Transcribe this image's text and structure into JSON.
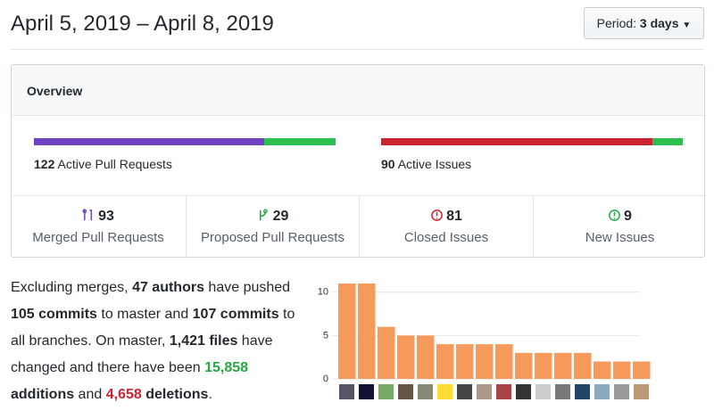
{
  "header": {
    "title": "April 5, 2019 – April 8, 2019",
    "period_label": "Period:",
    "period_value": "3 days"
  },
  "overview": {
    "title": "Overview",
    "pull_requests": {
      "count": 122,
      "label": "Active Pull Requests"
    },
    "issues": {
      "count": 90,
      "label": "Active Issues"
    },
    "stats": [
      {
        "value": 93,
        "label": "Merged Pull Requests",
        "color": "#6f42c1"
      },
      {
        "value": 29,
        "label": "Proposed Pull Requests",
        "color": "#28a745"
      },
      {
        "value": 81,
        "label": "Closed Issues",
        "color": "#cb2431"
      },
      {
        "value": 9,
        "label": "New Issues",
        "color": "#28a745"
      }
    ]
  },
  "summary": [
    {
      "text": "Excluding merges, "
    },
    {
      "text": "47 authors",
      "bold": true
    },
    {
      "text": " have pushed "
    },
    {
      "text": "105 commits",
      "bold": true
    },
    {
      "text": " to master and "
    },
    {
      "text": "107 commits",
      "bold": true
    },
    {
      "text": " to all branches. On master, "
    },
    {
      "text": "1,421 files",
      "bold": true
    },
    {
      "text": " have changed and there have been "
    },
    {
      "text": "15,858",
      "bold": true,
      "color": "#28a745"
    },
    {
      "text": " additions",
      "bold": true
    },
    {
      "text": " and "
    },
    {
      "text": "4,658",
      "bold": true,
      "color": "#cb2431"
    },
    {
      "text": " deletions",
      "bold": true
    },
    {
      "text": "."
    }
  ],
  "chart_data": {
    "type": "bar",
    "values": [
      11,
      11,
      6,
      5,
      5,
      4,
      4,
      4,
      4,
      3,
      3,
      3,
      3,
      2,
      2,
      2
    ],
    "color": "#f69a5b",
    "ylim": [
      0,
      11
    ],
    "yticks": [
      0,
      5,
      10
    ],
    "grid": true
  }
}
